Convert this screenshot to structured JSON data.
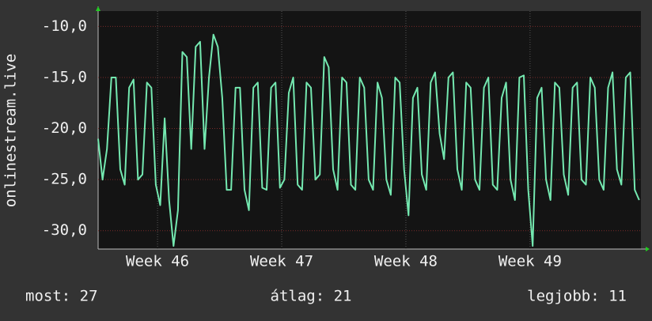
{
  "chart_data": {
    "type": "line",
    "ylabel": "onlinestream.live",
    "xlim": [
      0,
      30.6
    ],
    "xticks": [
      {
        "value": 3.35,
        "label": "Week 46"
      },
      {
        "value": 10.35,
        "label": "Week 47"
      },
      {
        "value": 17.35,
        "label": "Week 48"
      },
      {
        "value": 24.35,
        "label": "Week 49"
      }
    ],
    "ylim": [
      -31.8,
      -8.5
    ],
    "yticks": [
      {
        "value": -30,
        "label": "-30,0"
      },
      {
        "value": -25,
        "label": "-25,0"
      },
      {
        "value": -20,
        "label": "-20,0"
      },
      {
        "value": -15,
        "label": "-15,0"
      },
      {
        "value": -10,
        "label": "-10,0"
      }
    ],
    "grid": true,
    "x": [
      0,
      0.25,
      0.5,
      0.75,
      1,
      1.25,
      1.5,
      1.75,
      2,
      2.25,
      2.5,
      2.75,
      3,
      3.25,
      3.5,
      3.75,
      4,
      4.25,
      4.5,
      4.75,
      5,
      5.25,
      5.5,
      5.75,
      6,
      6.25,
      6.5,
      6.75,
      7,
      7.25,
      7.5,
      7.75,
      8,
      8.25,
      8.5,
      8.75,
      9,
      9.25,
      9.5,
      9.75,
      10,
      10.25,
      10.5,
      10.75,
      11,
      11.25,
      11.5,
      11.75,
      12,
      12.25,
      12.5,
      12.75,
      13,
      13.25,
      13.5,
      13.75,
      14,
      14.25,
      14.5,
      14.75,
      15,
      15.25,
      15.5,
      15.75,
      16,
      16.25,
      16.5,
      16.75,
      17,
      17.25,
      17.5,
      17.75,
      18,
      18.25,
      18.5,
      18.75,
      19,
      19.25,
      19.5,
      19.75,
      20,
      20.25,
      20.5,
      20.75,
      21,
      21.25,
      21.5,
      21.75,
      22,
      22.25,
      22.5,
      22.75,
      23,
      23.25,
      23.5,
      23.75,
      24,
      24.25,
      24.5,
      24.75,
      25,
      25.25,
      25.5,
      25.75,
      26,
      26.25,
      26.5,
      26.75,
      27,
      27.25,
      27.5,
      27.75,
      28,
      28.25,
      28.5,
      28.75,
      29,
      29.25,
      29.5,
      29.75,
      30,
      30.25,
      30.5
    ],
    "series": [
      {
        "name": "onlinestream.live",
        "color": "#74e8b0",
        "values": [
          -21,
          -25,
          -22,
          -15,
          -15,
          -24,
          -25.5,
          -16,
          -15.2,
          -25,
          -24.5,
          -15.5,
          -16,
          -25.5,
          -27.5,
          -19,
          -27,
          -31.5,
          -28,
          -12.5,
          -13,
          -22,
          -12,
          -11.5,
          -22,
          -15,
          -10.8,
          -12,
          -17,
          -26,
          -26,
          -16,
          -16,
          -26,
          -28,
          -16,
          -15.5,
          -25.8,
          -26,
          -16,
          -15.5,
          -25.8,
          -25,
          -16.5,
          -15,
          -25.5,
          -26,
          -15.5,
          -16,
          -25,
          -24.5,
          -13,
          -14,
          -24,
          -26,
          -15,
          -15.5,
          -25.5,
          -26,
          -15,
          -16,
          -25,
          -26,
          -15.5,
          -17,
          -25,
          -26.5,
          -15,
          -15.5,
          -24,
          -28.5,
          -17,
          -16,
          -24.5,
          -26,
          -15.5,
          -14.5,
          -20.5,
          -23,
          -15,
          -14.5,
          -24,
          -26,
          -15.5,
          -16,
          -25,
          -26,
          -16,
          -15,
          -25.5,
          -26,
          -17,
          -15.5,
          -25,
          -27,
          -15,
          -14.8,
          -26,
          -31.5,
          -17,
          -16,
          -25,
          -27,
          -15.5,
          -16,
          -24.5,
          -26.5,
          -16,
          -15.5,
          -25,
          -25.5,
          -15,
          -16,
          -25,
          -26,
          -16,
          -14.5,
          -24,
          -25.5,
          -15,
          -14.5,
          -26,
          -27
        ]
      }
    ]
  },
  "summary": [
    "most: 27",
    "átlag: 21",
    "legjobb: 11"
  ]
}
